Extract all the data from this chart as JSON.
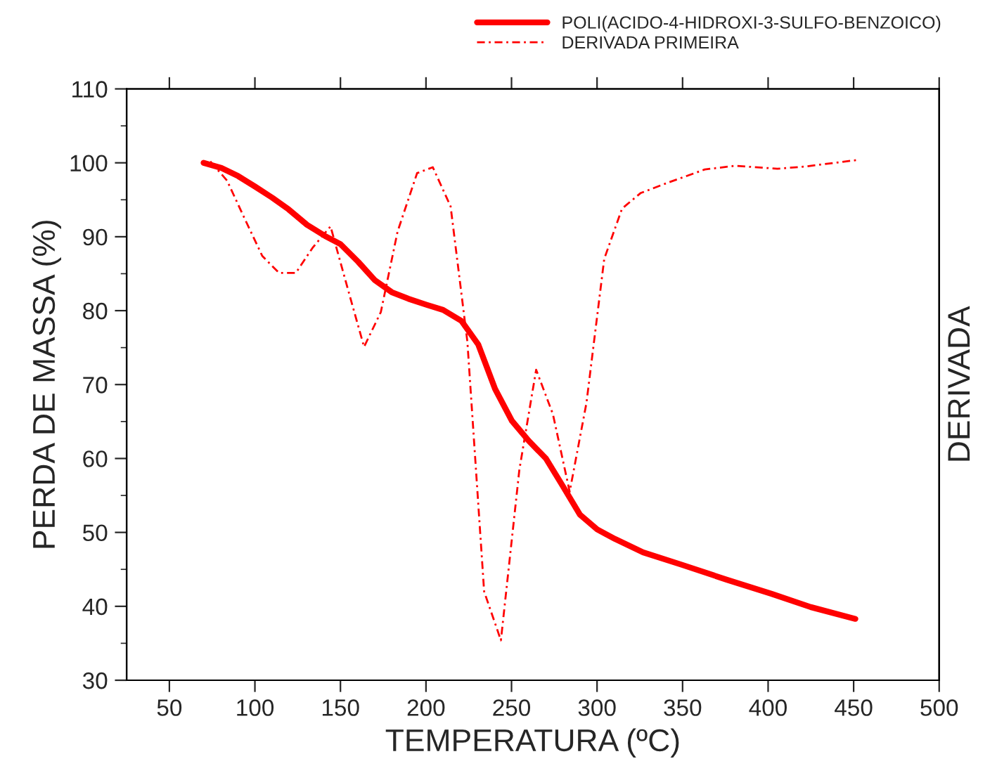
{
  "chart_data": {
    "type": "line",
    "xlabel": "TEMPERATURA (ºC)",
    "ylabel": "PERDA DE MASSA (%)",
    "y2label": "DERIVADA",
    "xlim": [
      25,
      500
    ],
    "xticks": [
      50,
      100,
      150,
      200,
      250,
      300,
      350,
      400,
      450,
      500
    ],
    "ylim": [
      30,
      110
    ],
    "yticks": [
      30,
      40,
      50,
      60,
      70,
      80,
      90,
      100,
      110
    ],
    "grid": false,
    "legend": "top right",
    "marker": "none",
    "series": [
      {
        "name": "POLI(ACIDO-4-HIDROXI-3-SULFO-BENZOICO)",
        "color": "#ff0000",
        "line_style": "solid",
        "x": [
          70,
          80.4,
          90.2,
          100,
          110,
          119.7,
          130.5,
          141,
          150,
          160.4,
          170.2,
          180,
          189.8,
          200.2,
          210,
          220.8,
          230.6,
          240.4,
          250.2,
          260,
          270.1,
          279.9,
          290,
          300.1,
          310.6,
          326.9,
          349.8,
          375.9,
          402,
          424.9,
          451
        ],
        "values": [
          100,
          99.3,
          98.2,
          96.8,
          95.3,
          93.7,
          91.6,
          90.1,
          89.0,
          86.6,
          84.1,
          82.5,
          81.6,
          80.8,
          80.1,
          78.6,
          75.4,
          69.4,
          65.1,
          62.4,
          60.0,
          56.3,
          52.4,
          50.4,
          49.1,
          47.3,
          45.6,
          43.6,
          41.7,
          39.9,
          38.3
        ]
      },
      {
        "name": "DERIVADA PRIMEIRA",
        "color": "#ff0000",
        "line_style": "dashed",
        "x": [
          73.9,
          83.7,
          93.5,
          104.3,
          114.1,
          123.9,
          133.7,
          144.2,
          154,
          163.8,
          173.6,
          183.4,
          194.8,
          204,
          214.4,
          224.2,
          234,
          243.8,
          254.6,
          264.4,
          274.2,
          284,
          293.8,
          304.2,
          314.6,
          325.4,
          340.1,
          363,
          380.9,
          405.4,
          421.8,
          452.8
        ],
        "values": [
          100.2,
          97.6,
          92.7,
          87.4,
          85.1,
          85.1,
          88.5,
          91.4,
          83.2,
          75.1,
          79.8,
          90.7,
          98.6,
          99.4,
          94.1,
          75.8,
          42.0,
          35.4,
          58.5,
          72.0,
          66.0,
          55.5,
          67.5,
          87.0,
          93.8,
          95.9,
          97.2,
          99.1,
          99.6,
          99.2,
          99.5,
          100.4
        ]
      }
    ]
  }
}
